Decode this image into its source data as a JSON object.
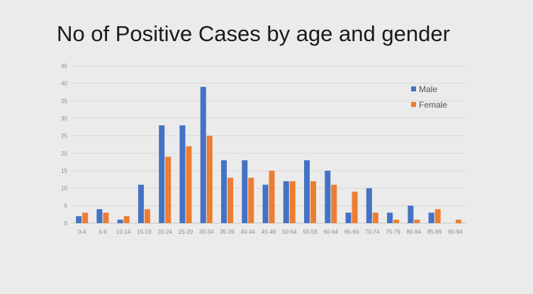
{
  "chart_data": {
    "type": "bar",
    "title": "No of Positive Cases by age and gender",
    "categories": [
      "0-4",
      "5-9",
      "10-14",
      "15-19",
      "20-24",
      "25-29",
      "30-34",
      "35-39",
      "40-44",
      "45-49",
      "50-54",
      "55-59",
      "60-64",
      "65-69",
      "70-74",
      "75-79",
      "80-84",
      "85-89",
      "90-94"
    ],
    "series": [
      {
        "name": "Male",
        "color": "#4472c4",
        "values": [
          2,
          4,
          1,
          11,
          28,
          28,
          39,
          18,
          18,
          11,
          12,
          18,
          15,
          3,
          10,
          3,
          5,
          3,
          0
        ]
      },
      {
        "name": "Female",
        "color": "#ed7d31",
        "values": [
          3,
          3,
          2,
          4,
          19,
          22,
          25,
          13,
          13,
          15,
          12,
          12,
          11,
          9,
          3,
          1,
          1,
          4,
          1
        ]
      }
    ],
    "ylim": [
      0,
      45
    ],
    "yticks": [
      0,
      5,
      10,
      15,
      20,
      25,
      30,
      35,
      40,
      45
    ],
    "grid": true,
    "legend_position": "top-right"
  }
}
